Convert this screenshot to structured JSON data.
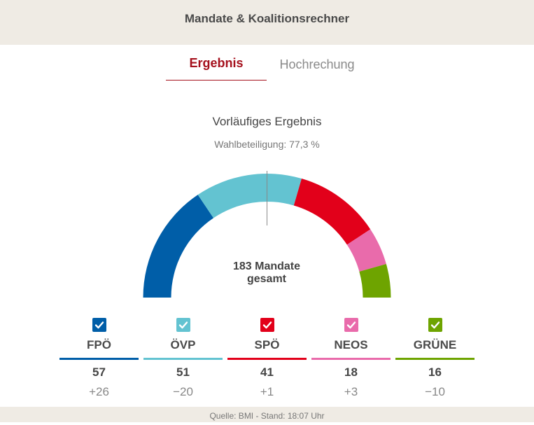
{
  "header": {
    "title": "Mandate & Koalitionsrechner"
  },
  "tabs": [
    {
      "label": "Ergebnis",
      "active": true
    },
    {
      "label": "Hochrechung",
      "active": false
    }
  ],
  "result": {
    "subtitle": "Vorläufiges Ergebnis",
    "turnout": "Wahlbeteiligung: 77,3 %",
    "total_line1": "183 Mandate",
    "total_line2": "gesamt"
  },
  "chart_data": {
    "type": "parliament-semicircle",
    "total": 183,
    "majority_marker": true,
    "series": [
      {
        "name": "FPÖ",
        "seats": 57,
        "change": "+26",
        "color": "#005ea8",
        "checked": true
      },
      {
        "name": "ÖVP",
        "seats": 51,
        "change": "−20",
        "color": "#63c3d1",
        "checked": true
      },
      {
        "name": "SPÖ",
        "seats": 41,
        "change": "+1",
        "color": "#e2001a",
        "checked": true
      },
      {
        "name": "NEOS",
        "seats": 18,
        "change": "+3",
        "color": "#e96bab",
        "checked": true
      },
      {
        "name": "GRÜNE",
        "seats": 16,
        "change": "−10",
        "color": "#6ea400",
        "checked": true
      }
    ]
  },
  "footer": {
    "source": "Quelle: BMI - Stand: 18:07 Uhr"
  }
}
